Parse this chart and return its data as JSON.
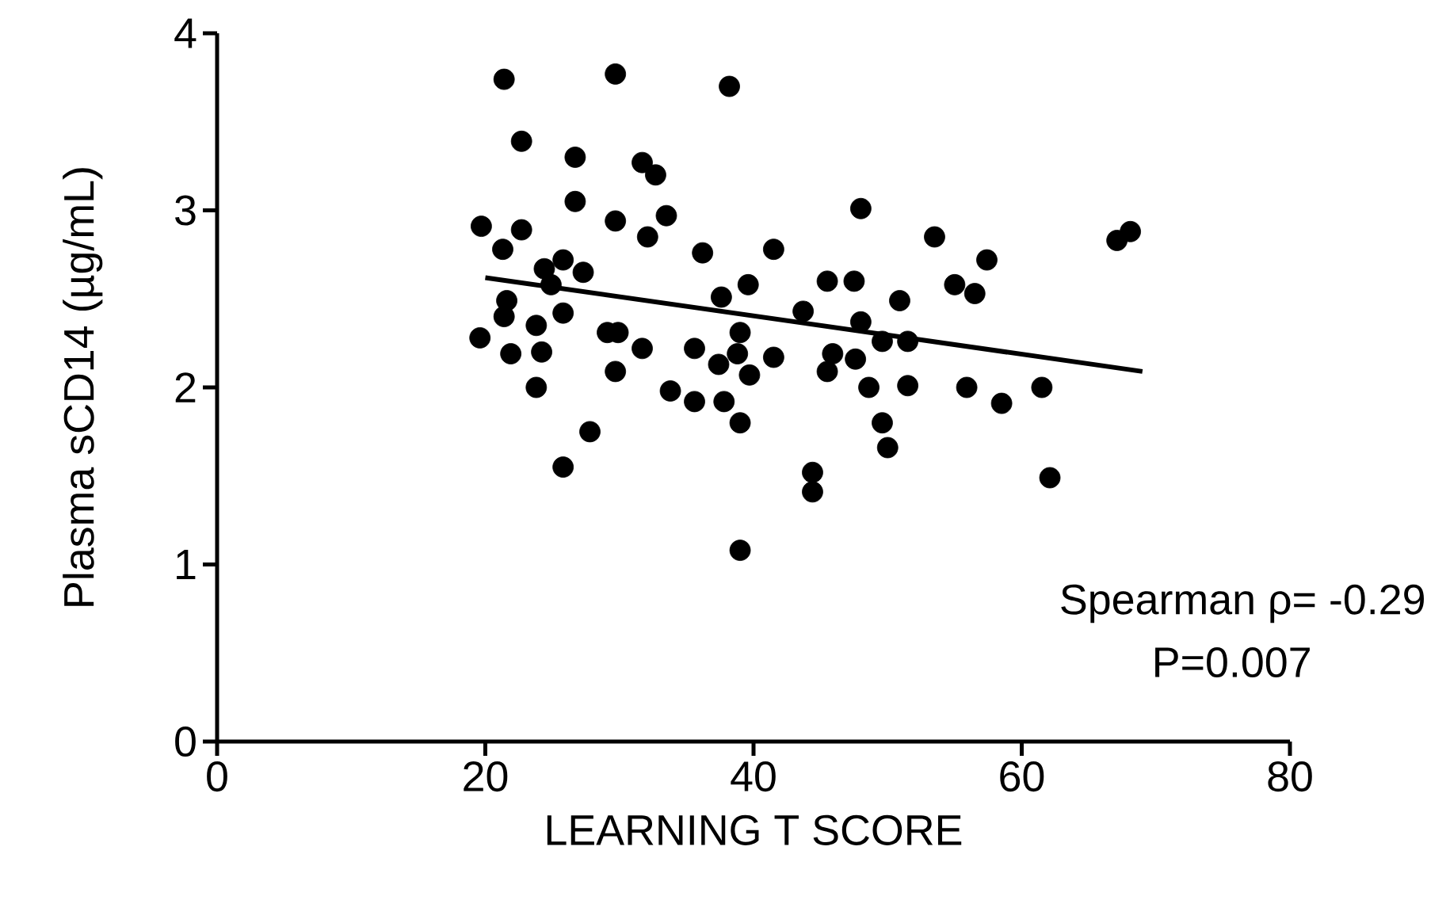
{
  "chart_data": {
    "type": "scatter",
    "xlabel": "LEARNING T SCORE",
    "ylabel": "Plasma sCD14 (µg/mL)",
    "xlim": [
      0,
      80
    ],
    "xticks": [
      0,
      20,
      40,
      60,
      80
    ],
    "ylim": [
      0,
      4
    ],
    "yticks": [
      0,
      1,
      2,
      3,
      4
    ],
    "grid": false,
    "annotations": [
      "Spearman ρ= -0.29",
      "P=0.007"
    ],
    "series": [
      {
        "marker": "circle",
        "color": "#000000",
        "x": [
          21.4,
          29.7,
          38.2,
          22.7,
          26.7,
          31.7,
          32.7,
          26.7,
          29.7,
          33.5,
          32.1,
          19.7,
          22.7,
          36.2,
          41.5,
          39.6,
          37.6,
          24.4,
          25.8,
          27.3,
          24.9,
          21.3,
          21.6,
          21.4,
          19.6,
          21.9,
          23.8,
          24.2,
          25.8,
          23.8,
          27.8,
          25.8,
          29.1,
          29.9,
          31.7,
          29.7,
          35.6,
          33.8,
          35.6,
          37.4,
          37.8,
          39.0,
          39.0,
          39.7,
          38.8,
          41.5,
          39.0,
          44.4,
          44.4,
          48.0,
          53.5,
          57.4,
          68.1,
          67.1,
          45.5,
          47.5,
          43.7,
          48.0,
          50.9,
          55.0,
          56.5,
          49.6,
          51.5,
          45.9,
          47.6,
          45.5,
          48.6,
          51.5,
          55.9,
          58.5,
          61.5,
          49.6,
          50.0,
          62.1
        ],
        "values": [
          3.74,
          3.77,
          3.7,
          3.39,
          3.3,
          3.27,
          3.2,
          3.05,
          2.94,
          2.97,
          2.85,
          2.91,
          2.89,
          2.76,
          2.78,
          2.58,
          2.51,
          2.67,
          2.72,
          2.65,
          2.58,
          2.78,
          2.49,
          2.4,
          2.28,
          2.19,
          2.35,
          2.2,
          2.42,
          2.0,
          1.75,
          1.55,
          2.31,
          2.31,
          2.22,
          2.09,
          2.22,
          1.98,
          1.92,
          2.13,
          1.92,
          2.31,
          1.8,
          2.07,
          2.19,
          2.17,
          1.08,
          1.52,
          1.41,
          3.01,
          2.85,
          2.72,
          2.88,
          2.83,
          2.6,
          2.6,
          2.43,
          2.37,
          2.49,
          2.58,
          2.53,
          2.26,
          2.26,
          2.19,
          2.16,
          2.09,
          2.0,
          2.01,
          2.0,
          1.91,
          2.0,
          1.8,
          1.66,
          1.49
        ]
      },
      {
        "type": "line",
        "marker": "none",
        "color": "#000000",
        "x": [
          20,
          69
        ],
        "values": [
          2.62,
          2.09
        ]
      }
    ]
  }
}
